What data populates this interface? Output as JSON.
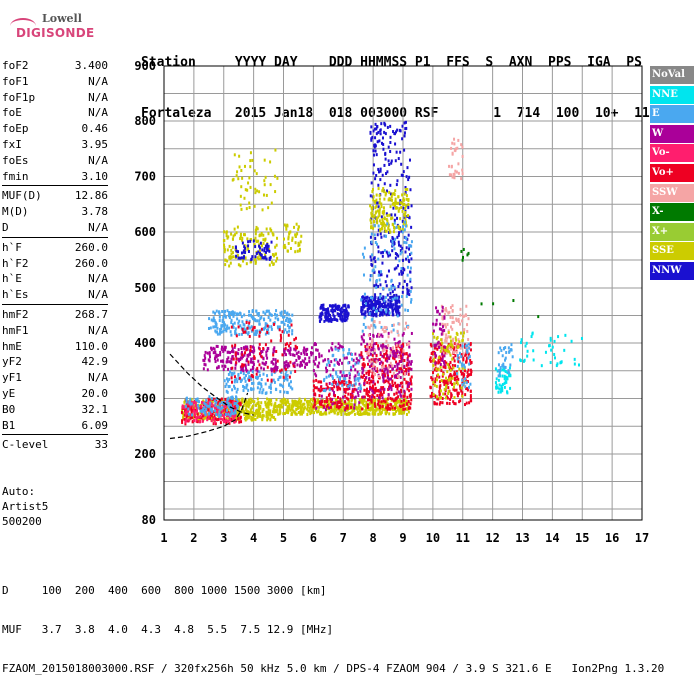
{
  "logo": {
    "line1": "Lowell",
    "line2": "DIGISONDE"
  },
  "header": {
    "line1": "Station     YYYY DAY    DDD HHMMSS P1  FFS  S  AXN  PPS  IGA  PS",
    "line2": "Fortaleza   2015 Jan18  018 003000 RSF       1  714  100  10+  11"
  },
  "params": [
    [
      {
        "label": "foF2",
        "value": "3.400"
      },
      {
        "label": "foF1",
        "value": "N/A"
      },
      {
        "label": "foF1p",
        "value": "N/A"
      },
      {
        "label": "foE",
        "value": "N/A"
      },
      {
        "label": "foEp",
        "value": "0.46"
      },
      {
        "label": "fxI",
        "value": "3.95"
      },
      {
        "label": "foEs",
        "value": "N/A"
      },
      {
        "label": "fmin",
        "value": "3.10"
      }
    ],
    [
      {
        "label": "MUF(D)",
        "value": "12.86"
      },
      {
        "label": "M(D)",
        "value": "3.78"
      },
      {
        "label": "D",
        "value": "N/A"
      }
    ],
    [
      {
        "label": "h`F",
        "value": "260.0"
      },
      {
        "label": "h`F2",
        "value": "260.0"
      },
      {
        "label": "h`E",
        "value": "N/A"
      },
      {
        "label": "h`Es",
        "value": "N/A"
      }
    ],
    [
      {
        "label": "hmF2",
        "value": "268.7"
      },
      {
        "label": "hmF1",
        "value": "N/A"
      },
      {
        "label": "hmE",
        "value": "110.0"
      },
      {
        "label": "yF2",
        "value": "42.9"
      },
      {
        "label": "yF1",
        "value": "N/A"
      },
      {
        "label": "yE",
        "value": "20.0"
      },
      {
        "label": "B0",
        "value": "32.1"
      },
      {
        "label": "B1",
        "value": "6.09"
      }
    ],
    [
      {
        "label": "C-level",
        "value": "33"
      }
    ]
  ],
  "auto": {
    "line1": "Auto:",
    "line2": "Artist5",
    "line3": "500200"
  },
  "footer": {
    "line1": "D     100  200  400  600  800 1000 1500 3000 [km]",
    "line2": "MUF   3.7  3.8  4.0  4.3  4.8  5.5  7.5 12.9 [MHz]",
    "line3": "FZAOM_2015018003000.RSF / 320fx256h 50 kHz 5.0 km / DPS-4 FZAOM 904 / 3.9 S 321.6 E   Ion2Png 1.3.20"
  },
  "chart_data": {
    "type": "scatter",
    "xlim": [
      1,
      17
    ],
    "ylim": [
      80,
      900
    ],
    "x_ticks": [
      "1",
      "2",
      "3",
      "4",
      "5",
      "6",
      "7",
      "8",
      "9",
      "10",
      "11",
      "12",
      "13",
      "14",
      "15",
      "16",
      "17"
    ],
    "y_ticks": [
      "80",
      "200",
      "300",
      "400",
      "500",
      "600",
      "700",
      "800",
      "900"
    ],
    "grid": true,
    "legend_position": "right",
    "legend": [
      {
        "name": "NoVal",
        "color": "#888888"
      },
      {
        "name": "NNE",
        "color": "#00e5ee"
      },
      {
        "name": "E",
        "color": "#4aa8f0"
      },
      {
        "name": "W",
        "color": "#aa0099"
      },
      {
        "name": "Vo-",
        "color": "#ff1e6e"
      },
      {
        "name": "Vo+",
        "color": "#ee0022"
      },
      {
        "name": "SSW",
        "color": "#f5a5a5"
      },
      {
        "name": "X-",
        "color": "#007a00"
      },
      {
        "name": "X+",
        "color": "#99cc33"
      },
      {
        "name": "SSE",
        "color": "#cccc00"
      },
      {
        "name": "NNW",
        "color": "#1a10d0"
      }
    ],
    "clusters": [
      {
        "series": "SSE",
        "x": [
          1.6,
          4.8
        ],
        "y": [
          262,
          300
        ],
        "n": 420
      },
      {
        "series": "SSE",
        "x": [
          4.8,
          9.2
        ],
        "y": [
          272,
          300
        ],
        "n": 520
      },
      {
        "series": "Vo+",
        "x": [
          1.6,
          3.6
        ],
        "y": [
          255,
          300
        ],
        "n": 160
      },
      {
        "series": "Vo-",
        "x": [
          1.6,
          3.4
        ],
        "y": [
          258,
          295
        ],
        "n": 120
      },
      {
        "series": "E",
        "x": [
          1.7,
          3.5
        ],
        "y": [
          268,
          305
        ],
        "n": 100
      },
      {
        "series": "W",
        "x": [
          2.3,
          4.8
        ],
        "y": [
          350,
          395
        ],
        "n": 180
      },
      {
        "series": "W",
        "x": [
          5.0,
          5.8
        ],
        "y": [
          355,
          392
        ],
        "n": 50
      },
      {
        "series": "E",
        "x": [
          2.5,
          5.3
        ],
        "y": [
          415,
          460
        ],
        "n": 220
      },
      {
        "series": "E",
        "x": [
          3.0,
          5.3
        ],
        "y": [
          310,
          350
        ],
        "n": 120
      },
      {
        "series": "SSE",
        "x": [
          3.0,
          4.8
        ],
        "y": [
          540,
          610
        ],
        "n": 130
      },
      {
        "series": "SSE",
        "x": [
          5.0,
          5.6
        ],
        "y": [
          565,
          615
        ],
        "n": 40
      },
      {
        "series": "NNW",
        "x": [
          3.4,
          4.6
        ],
        "y": [
          550,
          585
        ],
        "n": 60
      },
      {
        "series": "SSE",
        "x": [
          3.3,
          4.8
        ],
        "y": [
          640,
          750
        ],
        "n": 50
      },
      {
        "series": "Vo+",
        "x": [
          3.2,
          5.5
        ],
        "y": [
          330,
          440
        ],
        "n": 90
      },
      {
        "series": "W",
        "x": [
          5.5,
          6.2
        ],
        "y": [
          358,
          395
        ],
        "n": 20
      },
      {
        "series": "NNW",
        "x": [
          6.2,
          7.2
        ],
        "y": [
          440,
          470
        ],
        "n": 140
      },
      {
        "series": "W",
        "x": [
          6.0,
          7.6
        ],
        "y": [
          280,
          400
        ],
        "n": 120
      },
      {
        "series": "Vo+",
        "x": [
          6.0,
          7.4
        ],
        "y": [
          282,
          335
        ],
        "n": 110
      },
      {
        "series": "E",
        "x": [
          6.3,
          7.6
        ],
        "y": [
          315,
          390
        ],
        "n": 60
      },
      {
        "series": "NNW",
        "x": [
          7.6,
          8.9
        ],
        "y": [
          450,
          485
        ],
        "n": 220
      },
      {
        "series": "NNW",
        "x": [
          7.9,
          9.3
        ],
        "y": [
          485,
          800
        ],
        "n": 260
      },
      {
        "series": "SSE",
        "x": [
          7.9,
          9.2
        ],
        "y": [
          600,
          680
        ],
        "n": 160
      },
      {
        "series": "Vo+",
        "x": [
          7.6,
          9.3
        ],
        "y": [
          280,
          400
        ],
        "n": 300
      },
      {
        "series": "W",
        "x": [
          7.6,
          9.3
        ],
        "y": [
          300,
          420
        ],
        "n": 160
      },
      {
        "series": "E",
        "x": [
          7.6,
          9.3
        ],
        "y": [
          420,
          620
        ],
        "n": 110
      },
      {
        "series": "SSW",
        "x": [
          7.8,
          9.2
        ],
        "y": [
          340,
          440
        ],
        "n": 60
      },
      {
        "series": "Vo+",
        "x": [
          9.9,
          11.3
        ],
        "y": [
          290,
          400
        ],
        "n": 240
      },
      {
        "series": "SSW",
        "x": [
          10.3,
          11.2
        ],
        "y": [
          380,
          470
        ],
        "n": 80
      },
      {
        "series": "SSW",
        "x": [
          10.5,
          11.0
        ],
        "y": [
          690,
          770
        ],
        "n": 30
      },
      {
        "series": "SSE",
        "x": [
          10.0,
          11.1
        ],
        "y": [
          300,
          420
        ],
        "n": 90
      },
      {
        "series": "W",
        "x": [
          10.0,
          10.4
        ],
        "y": [
          360,
          470
        ],
        "n": 40
      },
      {
        "series": "E",
        "x": [
          10.8,
          11.3
        ],
        "y": [
          320,
          400
        ],
        "n": 30
      },
      {
        "series": "NNE",
        "x": [
          12.1,
          12.6
        ],
        "y": [
          310,
          360
        ],
        "n": 50
      },
      {
        "series": "E",
        "x": [
          12.2,
          12.7
        ],
        "y": [
          340,
          400
        ],
        "n": 30
      },
      {
        "series": "NNE",
        "x": [
          12.9,
          15.0
        ],
        "y": [
          360,
          420
        ],
        "n": 40
      },
      {
        "series": "X-",
        "x": [
          10.9,
          11.2
        ],
        "y": [
          550,
          570
        ],
        "n": 6
      },
      {
        "series": "X-",
        "x": [
          11.6,
          13.6
        ],
        "y": [
          420,
          480
        ],
        "n": 4
      }
    ],
    "trace": {
      "lower": [
        [
          1.2,
          228
        ],
        [
          1.8,
          232
        ],
        [
          2.4,
          240
        ],
        [
          3.0,
          250
        ],
        [
          3.4,
          262
        ],
        [
          3.6,
          280
        ],
        [
          3.7,
          295
        ],
        [
          3.8,
          310
        ]
      ],
      "upper": [
        [
          1.2,
          380
        ],
        [
          1.8,
          345
        ],
        [
          2.3,
          320
        ],
        [
          2.8,
          300
        ],
        [
          3.2,
          285
        ],
        [
          3.6,
          275
        ],
        [
          4.0,
          270
        ]
      ]
    }
  }
}
